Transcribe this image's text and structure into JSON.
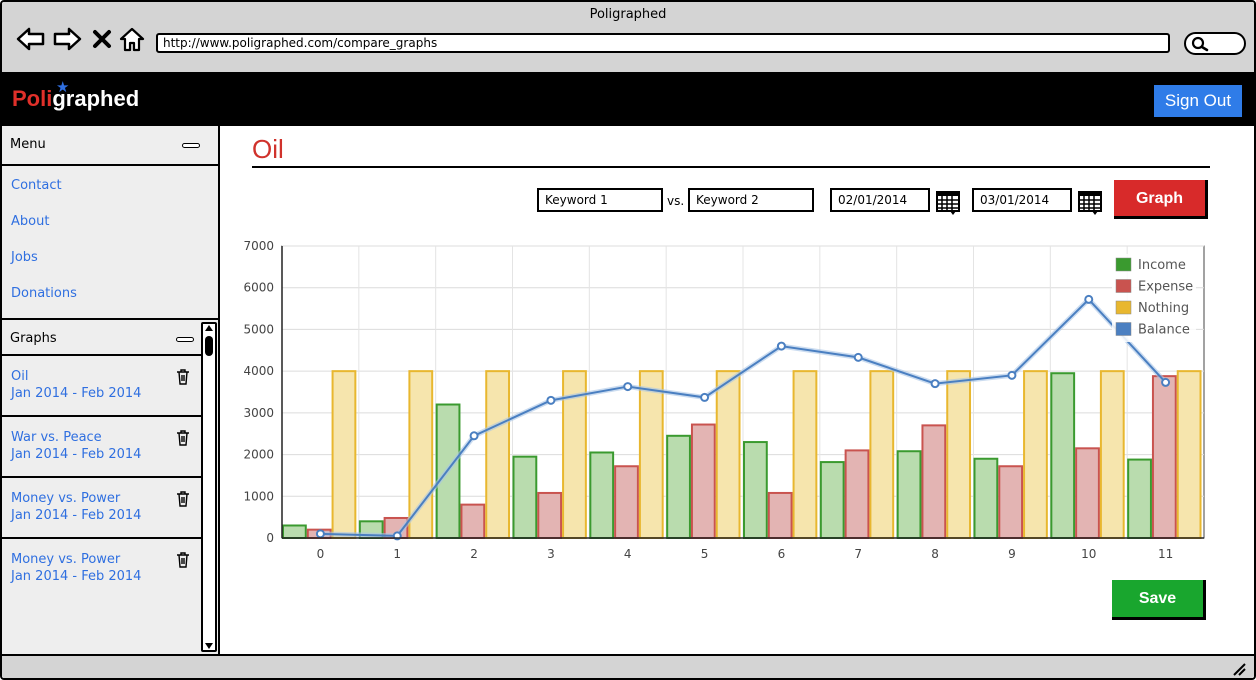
{
  "window": {
    "title": "Poligraphed",
    "url": "http://www.poligraphed.com/compare_graphs"
  },
  "nav_icons": [
    "back-arrow-icon",
    "forward-arrow-icon",
    "close-icon",
    "home-icon",
    "search-icon"
  ],
  "header": {
    "logo_red": "Poli",
    "logo_white": "graphed",
    "signout_label": "Sign Out"
  },
  "sidebar": {
    "menu_title": "Menu",
    "menu_items": [
      {
        "label": "Contact"
      },
      {
        "label": "About"
      },
      {
        "label": "Jobs"
      },
      {
        "label": "Donations"
      }
    ],
    "graphs_title": "Graphs",
    "graphs": [
      {
        "title": "Oil",
        "range": "Jan 2014 - Feb 2014"
      },
      {
        "title": "War vs. Peace",
        "range": "Jan 2014 - Feb 2014"
      },
      {
        "title": "Money vs. Power",
        "range": "Jan 2014 - Feb 2014"
      },
      {
        "title": "Money vs. Power",
        "range": "Jan 2014 - Feb 2014"
      }
    ]
  },
  "main": {
    "title": "Oil",
    "keyword1": "Keyword 1",
    "vs_label": "vs.",
    "keyword2": "Keyword 2",
    "date_from": "02/01/2014",
    "date_to": "03/01/2014",
    "graph_button": "Graph",
    "save_button": "Save"
  },
  "colors": {
    "brand_red": "#d0322c",
    "signout_blue": "#2f7ce8",
    "save_green": "#19a62e",
    "graph_red": "#d82a2a",
    "income": "#3a9a2f",
    "expense": "#c9534f",
    "nothing": "#e8b72f",
    "balance": "#4a7fc1"
  },
  "chart_data": {
    "type": "bar",
    "categories": [
      "0",
      "1",
      "2",
      "3",
      "4",
      "5",
      "6",
      "7",
      "8",
      "9",
      "10",
      "11"
    ],
    "ylim": [
      0,
      7000
    ],
    "yticks": [
      "0",
      "1000",
      "2000",
      "3000",
      "4000",
      "5000",
      "6000",
      "7000"
    ],
    "grid": true,
    "legend_position": "top-right",
    "series": [
      {
        "name": "Income",
        "kind": "bar",
        "color": "#3a9a2f",
        "values": [
          300,
          400,
          3200,
          1950,
          2050,
          2450,
          2300,
          1820,
          2080,
          1900,
          3950,
          1880
        ]
      },
      {
        "name": "Expense",
        "kind": "bar",
        "color": "#c9534f",
        "values": [
          200,
          480,
          800,
          1080,
          1720,
          2720,
          1080,
          2100,
          2700,
          1720,
          2150,
          3880
        ]
      },
      {
        "name": "Nothing",
        "kind": "bar",
        "color": "#e8b72f",
        "values": [
          4000,
          4000,
          4000,
          4000,
          4000,
          4000,
          4000,
          4000,
          4000,
          4000,
          4000,
          4000
        ]
      },
      {
        "name": "Balance",
        "kind": "line",
        "color": "#4a7fc1",
        "values": [
          100,
          50,
          2450,
          3300,
          3630,
          3370,
          4600,
          4330,
          3700,
          3900,
          5720,
          3730
        ]
      }
    ]
  }
}
